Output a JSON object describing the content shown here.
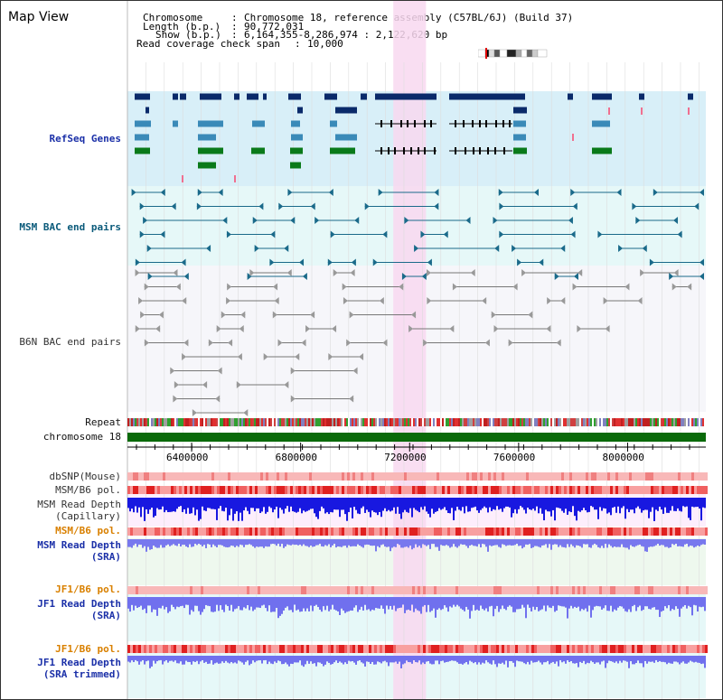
{
  "view": {
    "title": "Map View"
  },
  "header": {
    "chromosome_label": "Chromosome",
    "chromosome_value": "Chromosome 18, reference assembly (C57BL/6J) (Build 37)",
    "length_label": "Length (b.p.)",
    "length_value": "90,772,031",
    "show_label": "Show (b.p.)",
    "show_value": "6,164,355-8,286,974 : 2,122,620 bp",
    "coverage_label": "Read coverage check span",
    "coverage_value": "10,000",
    "sep": ":"
  },
  "tracks": {
    "refseq": "RefSeq Genes",
    "msm_bac": "MSM BAC end pairs",
    "b6n_bac": "B6N BAC end pairs",
    "repeat": "Repeat",
    "chromosome": "chromosome 18",
    "dbsnp": "dbSNP(Mouse)",
    "msm_b6_pol": "MSM/B6 pol.",
    "msm_read_cap_1": "MSM Read Depth",
    "msm_read_cap_2": "(Capillary)",
    "msm_b6_pol_sra": "MSM/B6 pol.",
    "msm_read_sra_1": "MSM Read Depth",
    "msm_read_sra_2": "(SRA)",
    "jf1_b6_pol": "JF1/B6 pol.",
    "jf1_read_sra_1": "JF1 Read Depth",
    "jf1_read_sra_2": "(SRA)",
    "jf1_b6_pol_2": "JF1/B6 pol.",
    "jf1_read_trim_1": "JF1 Read Depth",
    "jf1_read_trim_2": "(SRA trimmed)"
  },
  "axis": {
    "range_bp": [
      6164355,
      8286974
    ],
    "ticks": [
      {
        "value": 6400000,
        "label": "6400000"
      },
      {
        "value": 6800000,
        "label": "6800000"
      },
      {
        "value": 7200000,
        "label": "7200000"
      },
      {
        "value": 7600000,
        "label": "7600000"
      },
      {
        "value": 8000000,
        "label": "8000000"
      }
    ]
  },
  "highlight_region_bp": [
    7140000,
    7260000
  ],
  "colors": {
    "refseq_dark": "#0a2a6a",
    "refseq_mid": "#3a8ab8",
    "refseq_green": "#0a7a1a",
    "msm_bac": "#1a6a8a",
    "b6n_bac": "#777777",
    "highlight": "#f8d8f0",
    "chromosome_bar": "#0a6a0a",
    "snp_red": "#e03030",
    "depth_blue": "#1010e0",
    "depth_light": "#7070ee",
    "orange": "#d98000",
    "navy": "#1b30a8"
  }
}
